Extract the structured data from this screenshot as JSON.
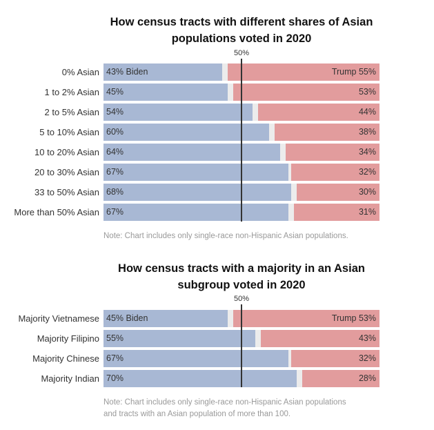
{
  "chart_data": [
    {
      "type": "bar",
      "title": "How census tracts with different shares of Asian populations voted in 2020",
      "title_lines": [
        "How census tracts with different shares of Asian",
        "populations voted in 2020"
      ],
      "midline_label": "50%",
      "categories": [
        "0% Asian",
        "1 to 2% Asian",
        "2 to 5% Asian",
        "5 to 10% Asian",
        "10 to 20% Asian",
        "20 to 30% Asian",
        "33 to 50% Asian",
        "More than 50% Asian"
      ],
      "series": [
        {
          "name": "Biden",
          "values": [
            43,
            45,
            54,
            60,
            64,
            67,
            68,
            67
          ],
          "color": "#a8b8d4"
        },
        {
          "name": "Trump",
          "values": [
            55,
            53,
            44,
            38,
            34,
            32,
            30,
            31
          ],
          "color": "#e29c9d"
        }
      ],
      "first_labels": {
        "biden": "43% Biden",
        "trump": "Trump 55%"
      },
      "xlim": [
        0,
        100
      ],
      "note": "Note: Chart includes only single-race non-Hispanic Asian populations."
    },
    {
      "type": "bar",
      "title": "How census tracts with a majority in an Asian subgroup voted in 2020",
      "title_lines": [
        "How census tracts with a majority in an Asian",
        "subgroup voted in 2020"
      ],
      "midline_label": "50%",
      "categories": [
        "Majority Vietnamese",
        "Majority Filipino",
        "Majority Chinese",
        "Majority Indian"
      ],
      "series": [
        {
          "name": "Biden",
          "values": [
            45,
            55,
            67,
            70
          ],
          "color": "#a8b8d4"
        },
        {
          "name": "Trump",
          "values": [
            53,
            43,
            32,
            28
          ],
          "color": "#e29c9d"
        }
      ],
      "first_labels": {
        "biden": "45% Biden",
        "trump": "Trump 53%"
      },
      "xlim": [
        0,
        100
      ],
      "note_lines": [
        "Note: Chart includes only single-race non-Hispanic Asian populations",
        "and tracts with an Asian population of more than 100."
      ]
    }
  ]
}
